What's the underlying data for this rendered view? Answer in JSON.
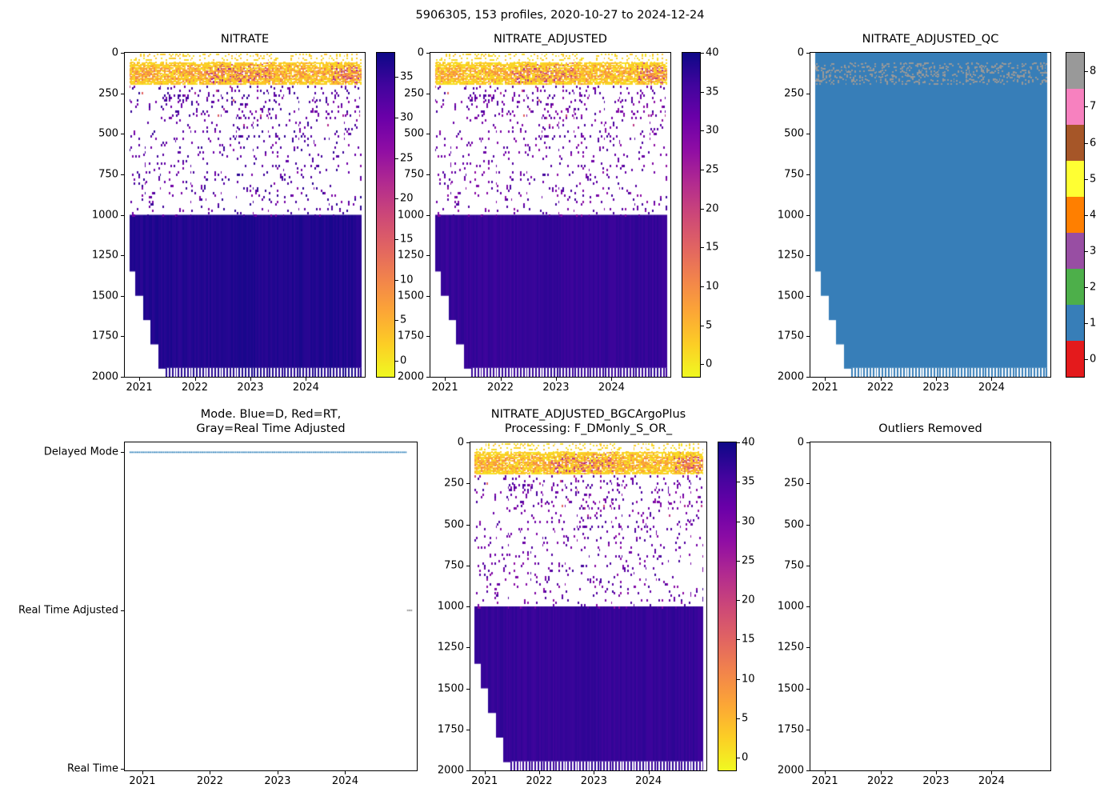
{
  "figure": {
    "title": "5906305, 153 profiles, 2020-10-27 to 2024-12-24",
    "background": "#ffffff"
  },
  "chart_data": [
    {
      "id": "nitrate",
      "type": "heatmap",
      "title": "NITRATE",
      "x": {
        "min": 2020.74,
        "max": 2025.06,
        "ticks": [
          2021,
          2022,
          2023,
          2024
        ]
      },
      "y": {
        "min": 0,
        "max": 2000,
        "reversed": true,
        "ticks": [
          0,
          250,
          500,
          750,
          1000,
          1250,
          1500,
          1750,
          2000
        ]
      },
      "profiles": {
        "count": 153,
        "t_start": 2020.82,
        "t_end": 2024.98,
        "first_date": "2020-10-27",
        "last_date": "2024-12-24"
      },
      "colorbar": {
        "cmap": "plasma_r",
        "vmin": -2,
        "vmax": 38,
        "ticks": [
          0,
          5,
          10,
          15,
          20,
          25,
          30,
          35
        ],
        "stops_bottom_to_top": [
          "#f0f921",
          "#fcce25",
          "#fca636",
          "#f2844b",
          "#e16462",
          "#cc4778",
          "#b12a90",
          "#8f0da4",
          "#6a00a8",
          "#41049d",
          "#0d0887"
        ]
      },
      "seed": 11,
      "data_summary": {
        "surface_scatter": {
          "depth_range": [
            0,
            60
          ],
          "value_range": [
            0,
            4
          ]
        },
        "surface_band": {
          "depth_range": [
            60,
            190
          ],
          "value_range": [
            0,
            25
          ],
          "center_depth": 125
        },
        "red_epochs": [
          [
            2022.2,
            2023.35
          ],
          [
            2024.45,
            2025.0
          ]
        ],
        "mid_scatter": {
          "depth_range": [
            200,
            1000
          ],
          "value_range": [
            27,
            36
          ]
        },
        "deep_block": {
          "depth_range": [
            1000,
            2000
          ],
          "value_range": [
            35.6,
            37.2
          ]
        },
        "max_depth_ramp": {
          "start_year": 2020.82,
          "start_depth": 1320,
          "full_depth_year": 2021.45,
          "full_depth": 2000
        },
        "bottom_comb": {
          "solid_to": 1945,
          "teeth_to": 2000,
          "teeth_every_n_profiles": 2
        }
      }
    },
    {
      "id": "nitrate_adjusted",
      "type": "heatmap",
      "title": "NITRATE_ADJUSTED",
      "x": {
        "min": 2020.74,
        "max": 2025.06,
        "ticks": [
          2021,
          2022,
          2023,
          2024
        ]
      },
      "y": {
        "min": 0,
        "max": 2000,
        "reversed": true,
        "ticks": [
          0,
          250,
          500,
          750,
          1000,
          1250,
          1500,
          1750,
          2000
        ]
      },
      "profiles": {
        "count": 153,
        "t_start": 2020.82,
        "t_end": 2024.98,
        "first_date": "2020-10-27",
        "last_date": "2024-12-24"
      },
      "colorbar": {
        "cmap": "plasma_r",
        "vmin": -1.6,
        "vmax": 40,
        "ticks": [
          0,
          5,
          10,
          15,
          20,
          25,
          30,
          35,
          40
        ],
        "stops_bottom_to_top": [
          "#f0f921",
          "#fcce25",
          "#fca636",
          "#f2844b",
          "#e16462",
          "#cc4778",
          "#b12a90",
          "#8f0da4",
          "#6a00a8",
          "#41049d",
          "#0d0887"
        ]
      },
      "seed": 11,
      "data_summary": {
        "surface_scatter": {
          "depth_range": [
            0,
            60
          ],
          "value_range": [
            0,
            4
          ]
        },
        "surface_band": {
          "depth_range": [
            60,
            190
          ],
          "value_range": [
            0,
            25
          ],
          "center_depth": 125
        },
        "red_epochs": [
          [
            2022.2,
            2023.35
          ],
          [
            2024.45,
            2025.0
          ]
        ],
        "mid_scatter": {
          "depth_range": [
            200,
            1000
          ],
          "value_range": [
            27,
            36
          ]
        },
        "deep_block": {
          "depth_range": [
            1000,
            2000
          ],
          "value_range": [
            36,
            37.5
          ]
        },
        "max_depth_ramp": {
          "start_year": 2020.82,
          "start_depth": 1320,
          "full_depth_year": 2021.45,
          "full_depth": 2000
        },
        "bottom_comb": {
          "solid_to": 1945,
          "teeth_to": 2000,
          "teeth_every_n_profiles": 2
        }
      }
    },
    {
      "id": "nitrate_adjusted_qc",
      "type": "heatmap",
      "title": "NITRATE_ADJUSTED_QC",
      "x": {
        "min": 2020.74,
        "max": 2025.06,
        "ticks": [
          2021,
          2022,
          2023,
          2024
        ]
      },
      "y": {
        "min": 0,
        "max": 2000,
        "reversed": true,
        "ticks": [
          0,
          250,
          500,
          750,
          1000,
          1250,
          1500,
          1750,
          2000
        ]
      },
      "profiles": {
        "count": 153,
        "t_start": 2020.82,
        "t_end": 2024.98,
        "first_date": "2020-10-27",
        "last_date": "2024-12-24"
      },
      "colorbar": {
        "type": "discrete",
        "vmin": 0,
        "vmax": 8,
        "ticks": [
          0,
          1,
          2,
          3,
          4,
          5,
          6,
          7,
          8
        ],
        "colors_by_value": [
          "#e41a1c",
          "#377eb8",
          "#4daf4a",
          "#984ea3",
          "#ff7f00",
          "#ffff33",
          "#a65628",
          "#f781bf",
          "#999999"
        ]
      },
      "seed": 13,
      "data_summary": {
        "dominant_qc": 1,
        "surface_dots": {
          "qc": 8,
          "depth_range": [
            60,
            190
          ]
        },
        "max_depth_ramp": {
          "start_year": 2020.82,
          "start_depth": 1320,
          "full_depth_year": 2021.45,
          "full_depth": 2000
        },
        "bottom_comb": {
          "solid_to": 1945,
          "teeth_to": 2000,
          "teeth_every_n_profiles": 2
        }
      }
    },
    {
      "id": "mode",
      "type": "scatter",
      "title_lines": [
        "Mode. Blue=D, Red=RT,",
        "Gray=Real Time Adjusted"
      ],
      "x": {
        "min": 2020.74,
        "max": 2025.06,
        "ticks": [
          2021,
          2022,
          2023,
          2024
        ]
      },
      "y": {
        "categories": [
          "Delayed Mode",
          "Real Time Adjusted",
          "Real Time"
        ]
      },
      "profiles": {
        "count": 153,
        "t_start": 2020.82,
        "t_end": 2024.98
      },
      "series": [
        {
          "name": "Delayed Mode",
          "category": "Delayed Mode",
          "color": "#1f77b4",
          "t_from": 2020.82,
          "t_to": 2024.9,
          "style": "dotted"
        },
        {
          "name": "Real Time Adjusted",
          "category": "Real Time Adjusted",
          "color": "#808080",
          "t_from": 2024.905,
          "t_to": 2024.98,
          "style": "dotted"
        }
      ],
      "legend_colors": {
        "delayed_mode": "#1f77b4",
        "real_time": "#d62728",
        "real_time_adjusted": "#808080"
      }
    },
    {
      "id": "nitrate_adjusted_bgcargoplus",
      "type": "heatmap",
      "title_lines": [
        "NITRATE_ADJUSTED_BGCArgoPlus",
        "Processing: F_DMonly_S_OR_"
      ],
      "x": {
        "min": 2020.74,
        "max": 2025.06,
        "ticks": [
          2021,
          2022,
          2023,
          2024
        ]
      },
      "y": {
        "min": 0,
        "max": 2000,
        "reversed": true,
        "ticks": [
          0,
          250,
          500,
          750,
          1000,
          1250,
          1500,
          1750,
          2000
        ]
      },
      "profiles": {
        "count": 153,
        "t_start": 2020.82,
        "t_end": 2024.98,
        "first_date": "2020-10-27",
        "last_date": "2024-12-24"
      },
      "colorbar": {
        "cmap": "plasma_r",
        "vmin": -1.6,
        "vmax": 40,
        "ticks": [
          0,
          5,
          10,
          15,
          20,
          25,
          30,
          35,
          40
        ],
        "stops_bottom_to_top": [
          "#f0f921",
          "#fcce25",
          "#fca636",
          "#f2844b",
          "#e16462",
          "#cc4778",
          "#b12a90",
          "#8f0da4",
          "#6a00a8",
          "#41049d",
          "#0d0887"
        ]
      },
      "seed": 11,
      "data_summary": {
        "surface_scatter": {
          "depth_range": [
            0,
            60
          ],
          "value_range": [
            0,
            4
          ]
        },
        "surface_band": {
          "depth_range": [
            60,
            190
          ],
          "value_range": [
            0,
            25
          ],
          "center_depth": 125
        },
        "red_epochs": [
          [
            2022.2,
            2023.35
          ],
          [
            2024.45,
            2025.0
          ]
        ],
        "mid_scatter": {
          "depth_range": [
            200,
            1000
          ],
          "value_range": [
            27,
            36
          ]
        },
        "deep_block": {
          "depth_range": [
            1000,
            2000
          ],
          "value_range": [
            36,
            37.5
          ]
        },
        "max_depth_ramp": {
          "start_year": 2020.82,
          "start_depth": 1320,
          "full_depth_year": 2021.45,
          "full_depth": 2000
        },
        "bottom_comb": {
          "solid_to": 1945,
          "teeth_to": 2000,
          "teeth_every_n_profiles": 2
        }
      }
    },
    {
      "id": "outliers_removed",
      "type": "empty",
      "title": "Outliers Removed",
      "x": {
        "min": 2020.74,
        "max": 2025.06,
        "ticks": [
          2021,
          2022,
          2023,
          2024
        ]
      },
      "y": {
        "min": 0,
        "max": 2000,
        "reversed": true,
        "ticks": [
          0,
          250,
          500,
          750,
          1000,
          1250,
          1500,
          1750,
          2000
        ]
      },
      "points": []
    }
  ]
}
